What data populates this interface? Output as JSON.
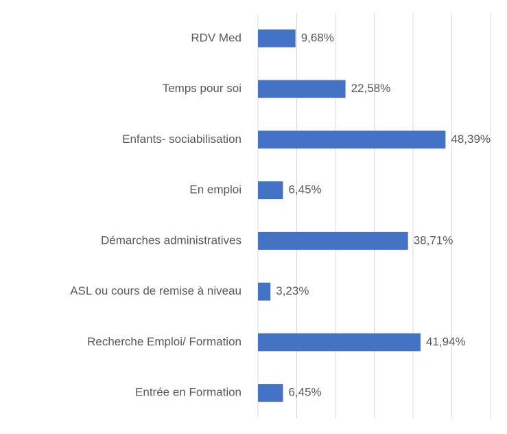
{
  "chart_data": {
    "type": "hbar",
    "categories": [
      "RDV Med",
      "Temps pour soi",
      "Enfants- sociabilisation",
      "En emploi",
      "Démarches administratives",
      "ASL ou cours de remise à niveau",
      "Recherche Emploi/ Formation",
      "Entrée en Formation"
    ],
    "values": [
      9.68,
      22.58,
      48.39,
      6.45,
      38.71,
      3.23,
      41.94,
      6.45
    ],
    "value_labels": [
      "9,68%",
      "22,58%",
      "48,39%",
      "6,45%",
      "38,71%",
      "3,23%",
      "41,94%",
      "6,45%"
    ],
    "color": "#4472c4",
    "xlim": [
      0,
      60
    ],
    "xticks": [
      0,
      10,
      20,
      30,
      40,
      50,
      60
    ],
    "grid": true
  }
}
